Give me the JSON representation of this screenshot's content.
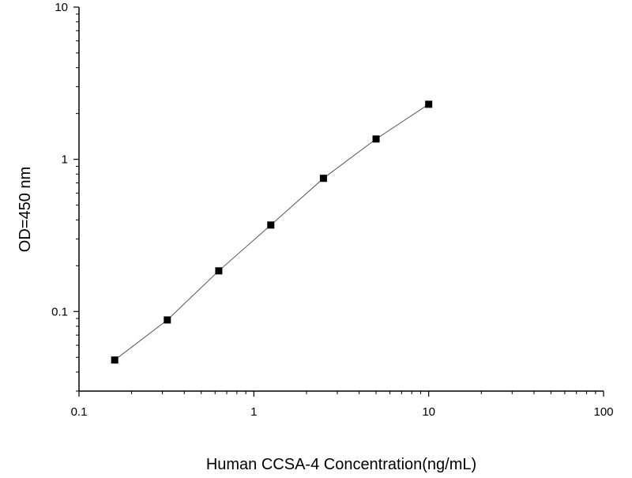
{
  "chart_data": {
    "type": "scatter",
    "title": "",
    "xlabel": "Human CCSA-4 Concentration(ng/mL)",
    "ylabel": "OD=450 nm",
    "x_scale": "log",
    "y_scale": "log",
    "xlim": [
      0.1,
      100
    ],
    "ylim": [
      0.03,
      10
    ],
    "x_ticks": [
      {
        "value": 0.1,
        "label": "0.1"
      },
      {
        "value": 1,
        "label": "1"
      },
      {
        "value": 10,
        "label": "10"
      },
      {
        "value": 100,
        "label": "100"
      }
    ],
    "y_ticks": [
      {
        "value": 0.1,
        "label": "0.1"
      },
      {
        "value": 1,
        "label": "1"
      },
      {
        "value": 10,
        "label": "10"
      }
    ],
    "grid": false,
    "legend": false,
    "series": [
      {
        "marker": "square",
        "line": "connected",
        "color": "#000000",
        "points": [
          {
            "x": 0.16,
            "y": 0.048
          },
          {
            "x": 0.32,
            "y": 0.088
          },
          {
            "x": 0.63,
            "y": 0.185
          },
          {
            "x": 1.25,
            "y": 0.37
          },
          {
            "x": 2.5,
            "y": 0.75
          },
          {
            "x": 5,
            "y": 1.36
          },
          {
            "x": 10,
            "y": 2.3
          }
        ]
      }
    ]
  }
}
